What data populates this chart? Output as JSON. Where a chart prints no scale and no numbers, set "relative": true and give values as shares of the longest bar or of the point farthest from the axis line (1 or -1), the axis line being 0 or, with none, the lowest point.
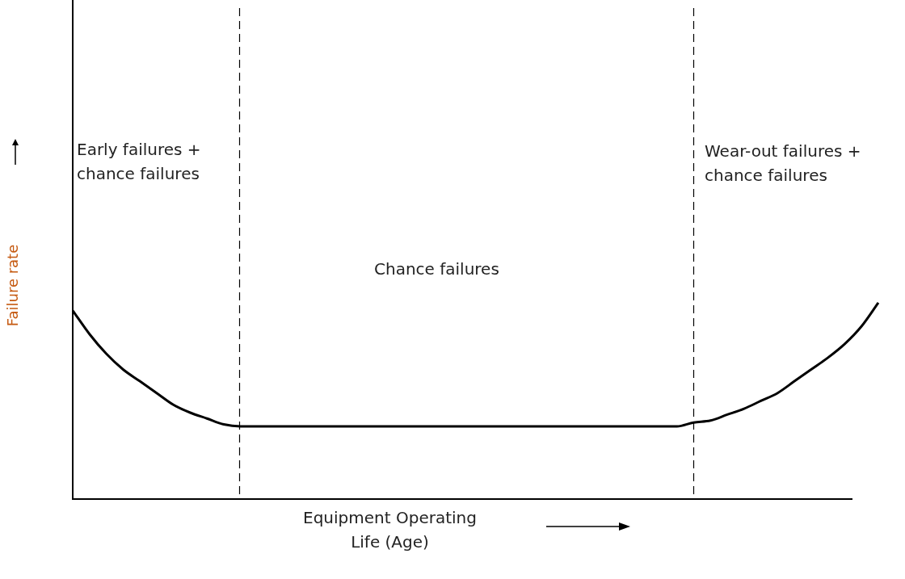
{
  "chart_data": {
    "type": "line",
    "relative": true,
    "xlabel": "Equipment Operating Life (Age)",
    "ylabel": "Failure rate",
    "categories": [
      null,
      null,
      null,
      null,
      null,
      null,
      null,
      null,
      null,
      null,
      null,
      null,
      null,
      null,
      null,
      null,
      null,
      null,
      null,
      null,
      null,
      null,
      null,
      null,
      null,
      null,
      null,
      null,
      null,
      null,
      null,
      null,
      null,
      null,
      null,
      null,
      null,
      null,
      null,
      null,
      null,
      null,
      null,
      null,
      null,
      null,
      null,
      null,
      null
    ],
    "series": [
      {
        "color": "#000000",
        "values": [
          0.96,
          0.84,
          0.74,
          0.66,
          0.6,
          0.54,
          0.48,
          0.44,
          0.41,
          0.38,
          0.37,
          0.37,
          0.37,
          0.37,
          0.37,
          0.37,
          0.37,
          0.37,
          0.37,
          0.37,
          0.37,
          0.37,
          0.37,
          0.37,
          0.37,
          0.37,
          0.37,
          0.37,
          0.37,
          0.37,
          0.37,
          0.37,
          0.37,
          0.37,
          0.37,
          0.37,
          0.37,
          0.39,
          0.4,
          0.43,
          0.46,
          0.5,
          0.54,
          0.6,
          0.66,
          0.72,
          0.79,
          0.88,
          1
        ]
      }
    ],
    "annotations": [
      "Early failures + chance failures",
      "Chance failures",
      "Wear-out failures + chance failures"
    ],
    "marker": "none",
    "line_style": "solid",
    "legend": false
  }
}
